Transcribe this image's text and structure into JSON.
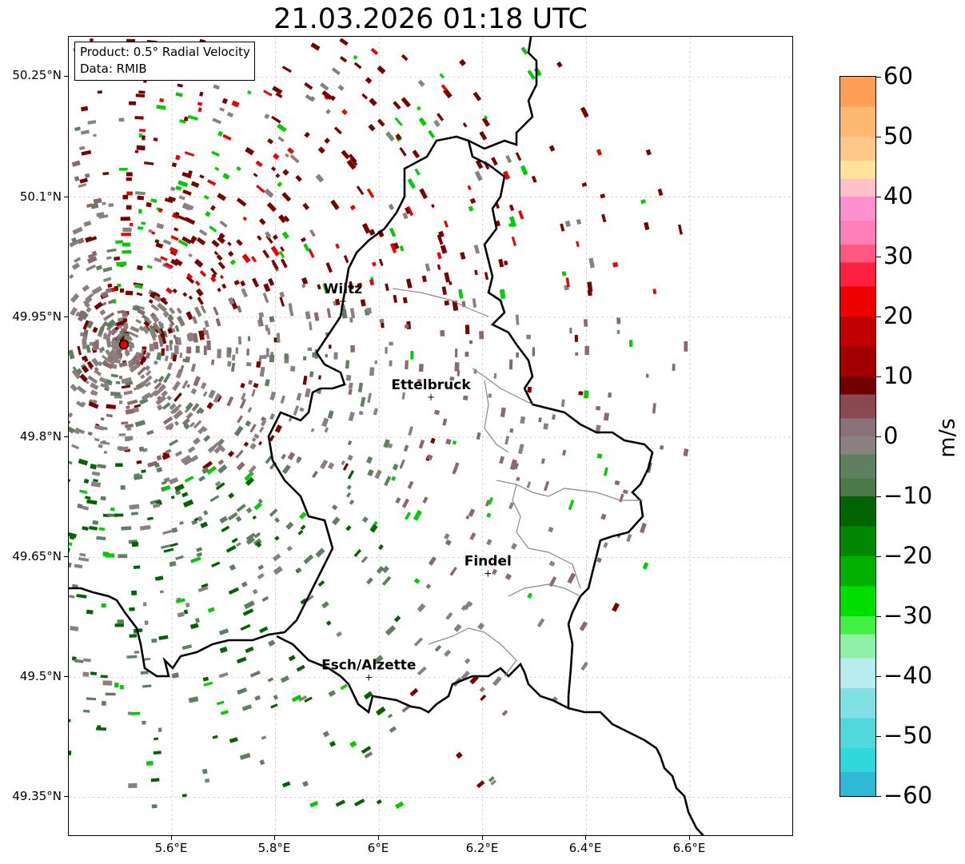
{
  "title": "21.03.2026 01:18 UTC",
  "info": {
    "product": "Product: 0.5° Radial Velocity",
    "data_source": "Data: RMIB"
  },
  "lat_labels": [
    "50.25°N",
    "50.1°N",
    "49.95°N",
    "49.8°N",
    "49.65°N",
    "49.5°N",
    "49.35°N"
  ],
  "lon_labels": [
    "5.6°E",
    "5.8°E",
    "6°E",
    "6.2°E",
    "6.4°E",
    "6.6°E"
  ],
  "colorbar": {
    "unit": "m/s",
    "tick_labels": [
      "60",
      "50",
      "40",
      "30",
      "20",
      "10",
      "0",
      "−10",
      "−20",
      "−30",
      "−40",
      "−50",
      "−60"
    ],
    "range": [
      -60,
      60
    ],
    "colors": {
      "high_orange": "#ff9f55",
      "light_orange": "#ffd58a",
      "pink": "#ff80c0",
      "red": "#ee0000",
      "dark_red": "#7a0000",
      "brown_gray": "#8a6a6e",
      "gray": "#8a8080",
      "dark_green_gray": "#5e8060",
      "dark_green": "#006400",
      "green": "#00cc00",
      "bright_green": "#55ee55",
      "pale_cyan": "#b8ecee",
      "cyan": "#30d8dc",
      "blue": "#2080c8"
    }
  },
  "cities": [
    {
      "name": "Wiltz",
      "lon": 5.93,
      "lat": 49.97
    },
    {
      "name": "Ettelbruck",
      "lon": 6.1,
      "lat": 49.85
    },
    {
      "name": "Findel",
      "lon": 6.21,
      "lat": 49.63
    },
    {
      "name": "Esch/Alzette",
      "lon": 5.98,
      "lat": 49.5
    }
  ],
  "radar_site": {
    "lon": 5.505,
    "lat": 49.915
  },
  "map_extent": {
    "lon": [
      5.4,
      6.8
    ],
    "lat": [
      49.3,
      50.3
    ]
  }
}
